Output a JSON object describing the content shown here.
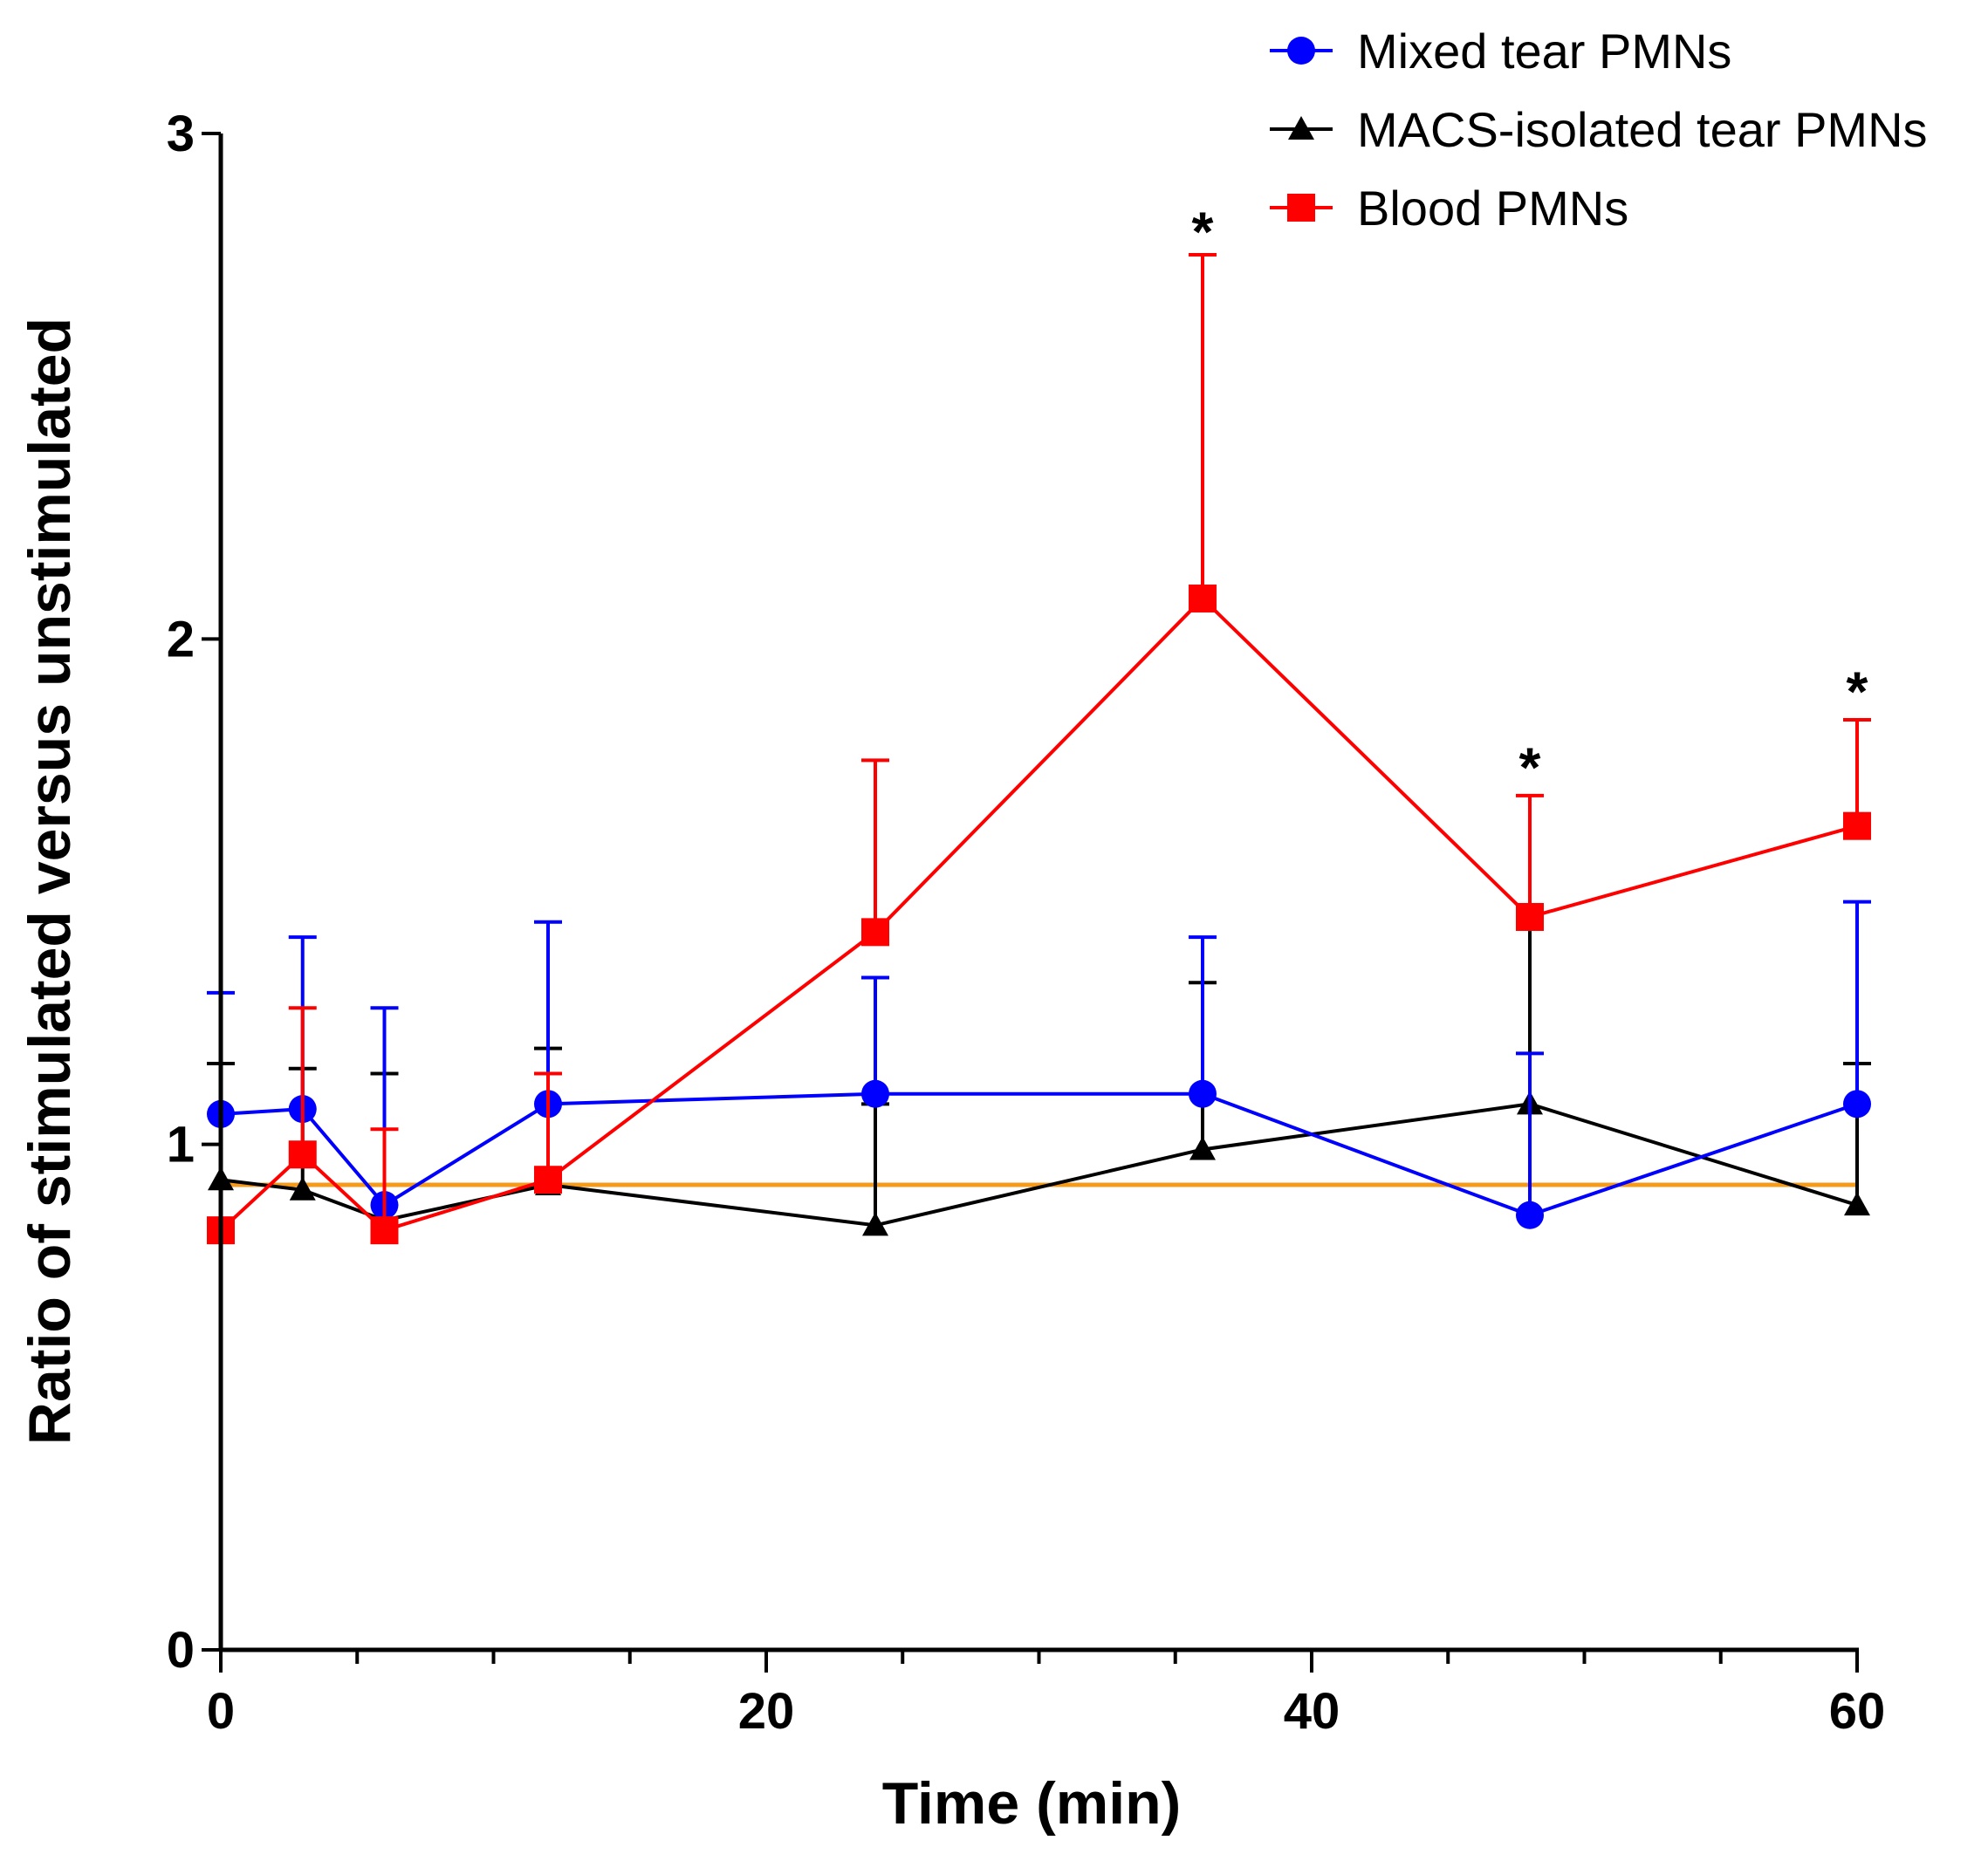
{
  "chart_data": {
    "type": "line",
    "xlabel": "Time (min)",
    "ylabel": "Ratio of stimulated versus unstimulated",
    "xlim": [
      0,
      60
    ],
    "ylim": [
      0,
      3
    ],
    "xticks": [
      0,
      20,
      40,
      60
    ],
    "xtick_labels": [
      "0",
      "20",
      "40",
      "60"
    ],
    "x_minor_step": 5,
    "yticks": [
      0,
      1,
      2,
      3
    ],
    "ytick_labels": [
      "0",
      "1",
      "2",
      "3"
    ],
    "legend_position": "top-right",
    "grid": false,
    "reference_line": {
      "y": 0.92,
      "color": "#f59b1c"
    },
    "series": [
      {
        "name": "Mixed tear PMNs",
        "color": "#0000ff",
        "marker": "circle",
        "x": [
          0,
          3,
          6,
          12,
          24,
          36,
          48,
          60
        ],
        "y": [
          1.06,
          1.07,
          0.88,
          1.08,
          1.1,
          1.1,
          0.86,
          1.08
        ],
        "err_upper": [
          1.3,
          1.41,
          1.27,
          1.44,
          1.33,
          1.41,
          1.18,
          1.48
        ]
      },
      {
        "name": "MACS-isolated tear PMNs",
        "color": "#000000",
        "marker": "triangle",
        "x": [
          0,
          3,
          6,
          12,
          24,
          36,
          48,
          60
        ],
        "y": [
          0.93,
          0.91,
          0.85,
          0.92,
          0.84,
          0.99,
          1.08,
          0.88
        ],
        "err_upper": [
          1.16,
          1.15,
          1.14,
          1.19,
          1.08,
          1.32,
          1.46,
          1.16
        ]
      },
      {
        "name": "Blood PMNs",
        "color": "#ff0000",
        "marker": "square",
        "x": [
          0,
          3,
          6,
          12,
          24,
          36,
          48,
          60
        ],
        "y": [
          0.83,
          0.98,
          0.83,
          0.93,
          1.42,
          2.08,
          1.45,
          1.63
        ],
        "err_upper": [
          0.83,
          1.27,
          1.03,
          1.14,
          1.76,
          2.76,
          1.69,
          1.84
        ]
      }
    ],
    "annotations": [
      {
        "text": "*",
        "x": 36,
        "y": 2.82
      },
      {
        "text": "*",
        "x": 48,
        "y": 1.76
      },
      {
        "text": "*",
        "x": 60,
        "y": 1.91
      }
    ]
  }
}
